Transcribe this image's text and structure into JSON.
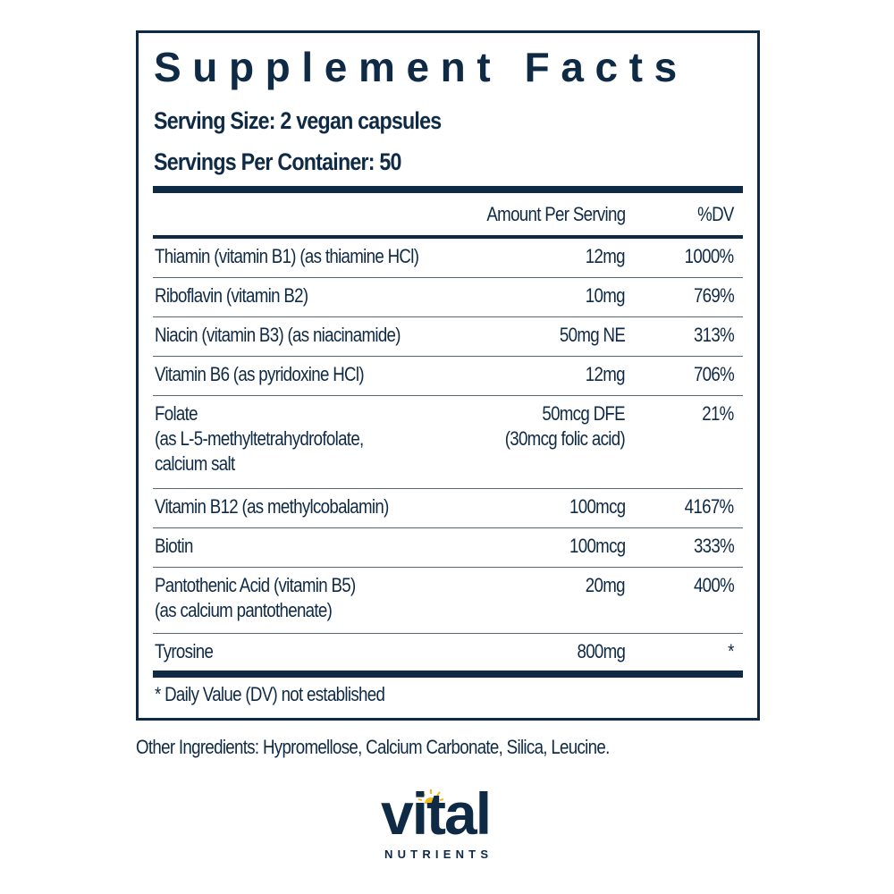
{
  "label": {
    "title": "Supplement Facts",
    "serving_size": "Serving Size: 2 vegan capsules",
    "servings_per_container": "Servings Per Container: 50",
    "header": {
      "amount": "Amount Per Serving",
      "dv": "%DV"
    },
    "rows": [
      {
        "name": [
          "Thiamin (vitamin B1) (as thiamine HCl)"
        ],
        "amount": [
          "12mg"
        ],
        "dv": "1000%"
      },
      {
        "name": [
          "Riboflavin (vitamin B2)"
        ],
        "amount": [
          "10mg"
        ],
        "dv": "769%"
      },
      {
        "name": [
          "Niacin (vitamin B3) (as niacinamide)"
        ],
        "amount": [
          "50mg NE"
        ],
        "dv": "313%"
      },
      {
        "name": [
          "Vitamin B6 (as pyridoxine HCl)"
        ],
        "amount": [
          "12mg"
        ],
        "dv": "706%"
      },
      {
        "name": [
          "Folate",
          "(as L-5-methyltetrahydrofolate,",
          "calcium salt"
        ],
        "amount": [
          "50mcg DFE",
          "(30mcg folic acid)"
        ],
        "dv": "21%"
      },
      {
        "name": [
          "Vitamin B12 (as methylcobalamin)"
        ],
        "amount": [
          "100mcg"
        ],
        "dv": "4167%"
      },
      {
        "name": [
          "Biotin"
        ],
        "amount": [
          "100mcg"
        ],
        "dv": "333%"
      },
      {
        "name": [
          "Pantothenic Acid (vitamin B5)",
          "(as calcium pantothenate)"
        ],
        "amount": [
          "20mg"
        ],
        "dv": "400%"
      },
      {
        "name": [
          "Tyrosine"
        ],
        "amount": [
          "800mg"
        ],
        "dv": "*"
      }
    ],
    "footnote": "* Daily Value (DV) not established"
  },
  "other_ingredients": "Other Ingredients: Hypromellose, Calcium Carbonate, Silica, Leucine.",
  "brand": {
    "name": "vital",
    "tagline": "NUTRIENTS",
    "sun_icon": "sun-icon",
    "colors": {
      "navy": "#0f2a45",
      "sun": "#f5b915"
    }
  }
}
